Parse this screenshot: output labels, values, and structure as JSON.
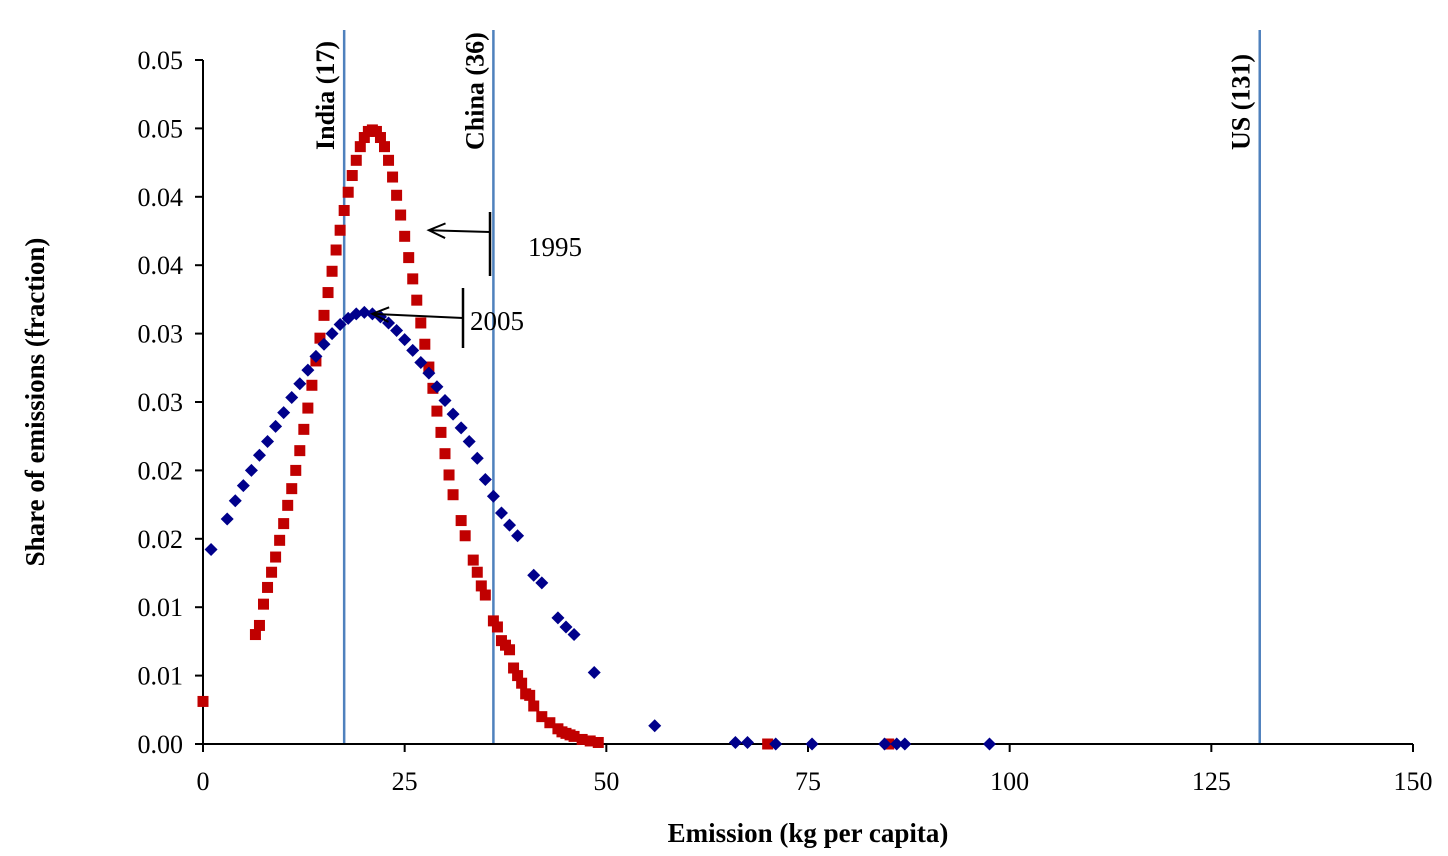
{
  "chart_data": {
    "type": "scatter",
    "title": "",
    "xlabel": "Emission (kg per capita)",
    "ylabel": "Share of emissions (fraction)",
    "xlim": [
      0,
      150
    ],
    "ylim": [
      0,
      0.045
    ],
    "x_ticks": [
      0,
      25,
      50,
      75,
      100,
      125,
      150
    ],
    "x_tick_labels": [
      "0",
      "25",
      "50",
      "75",
      "100",
      "125",
      "150"
    ],
    "y_tick_labels": [
      "0.00",
      "0.01",
      "0.01",
      "0.02",
      "0.02",
      "0.03",
      "0.03",
      "0.04",
      "0.04",
      "0.05",
      "0.05"
    ],
    "grid": false,
    "legend": "none",
    "reference_lines": [
      {
        "label": "India (17)",
        "x": 17.5
      },
      {
        "label": "China (36)",
        "x": 36
      },
      {
        "label": "US (131)",
        "x": 131
      }
    ],
    "annotations": [
      {
        "text": "1995",
        "series": "1995",
        "arrow_to": {
          "x": 28,
          "y": 0.0338
        }
      },
      {
        "text": "2005",
        "series": "2005",
        "arrow_to": {
          "x": 21,
          "y": 0.0283
        }
      }
    ],
    "series": [
      {
        "name": "1995",
        "color": "#c00000",
        "marker": "square",
        "points": [
          [
            0,
            0.0028
          ],
          [
            6.5,
            0.0072
          ],
          [
            7,
            0.0078
          ],
          [
            7.5,
            0.0092
          ],
          [
            8,
            0.0103
          ],
          [
            8.5,
            0.0113
          ],
          [
            9,
            0.0123
          ],
          [
            9.5,
            0.0134
          ],
          [
            10,
            0.0145
          ],
          [
            10.5,
            0.0157
          ],
          [
            11,
            0.0168
          ],
          [
            11.5,
            0.018
          ],
          [
            12,
            0.0193
          ],
          [
            12.5,
            0.0207
          ],
          [
            13,
            0.0221
          ],
          [
            13.5,
            0.0236
          ],
          [
            14,
            0.0252
          ],
          [
            14.5,
            0.0267
          ],
          [
            15,
            0.0282
          ],
          [
            15.5,
            0.0297
          ],
          [
            16,
            0.0311
          ],
          [
            16.5,
            0.0325
          ],
          [
            17,
            0.0338
          ],
          [
            17.5,
            0.0351
          ],
          [
            18,
            0.0363
          ],
          [
            18.5,
            0.0374
          ],
          [
            19,
            0.0384
          ],
          [
            19.5,
            0.0393
          ],
          [
            20,
            0.0399
          ],
          [
            20.5,
            0.0403
          ],
          [
            21,
            0.0404
          ],
          [
            21.5,
            0.0403
          ],
          [
            22,
            0.0399
          ],
          [
            22.5,
            0.0393
          ],
          [
            23,
            0.0384
          ],
          [
            23.5,
            0.0373
          ],
          [
            24,
            0.0361
          ],
          [
            24.5,
            0.0348
          ],
          [
            25,
            0.0334
          ],
          [
            25.5,
            0.032
          ],
          [
            26,
            0.0306
          ],
          [
            26.5,
            0.0292
          ],
          [
            27,
            0.0277
          ],
          [
            27.5,
            0.0263
          ],
          [
            28,
            0.0248
          ],
          [
            28.5,
            0.0234
          ],
          [
            29,
            0.0219
          ],
          [
            29.5,
            0.0205
          ],
          [
            30,
            0.0191
          ],
          [
            30.5,
            0.0177
          ],
          [
            31,
            0.0164
          ],
          [
            32,
            0.0147
          ],
          [
            32.5,
            0.0137
          ],
          [
            33.5,
            0.0121
          ],
          [
            34,
            0.0113
          ],
          [
            34.5,
            0.0104
          ],
          [
            35,
            0.0098
          ],
          [
            36,
            0.0081
          ],
          [
            36.5,
            0.0077
          ],
          [
            37,
            0.0068
          ],
          [
            37.5,
            0.0065
          ],
          [
            38,
            0.0062
          ],
          [
            38.5,
            0.005
          ],
          [
            39,
            0.0045
          ],
          [
            39.5,
            0.004
          ],
          [
            40,
            0.0033
          ],
          [
            40.5,
            0.0032
          ],
          [
            41,
            0.0025
          ],
          [
            42,
            0.0018
          ],
          [
            43,
            0.0014
          ],
          [
            44,
            0.001
          ],
          [
            44.5,
            0.0008
          ],
          [
            45,
            0.0007
          ],
          [
            45.5,
            0.0006
          ],
          [
            46,
            0.0005
          ],
          [
            47,
            0.0003
          ],
          [
            48,
            0.0002
          ],
          [
            49,
            0.0001
          ],
          [
            70,
            0.0
          ],
          [
            85,
            0.0
          ]
        ]
      },
      {
        "name": "2005",
        "color": "#00008b",
        "marker": "diamond",
        "points": [
          [
            1,
            0.0128
          ],
          [
            3,
            0.0148
          ],
          [
            4,
            0.016
          ],
          [
            5,
            0.017
          ],
          [
            6,
            0.018
          ],
          [
            7,
            0.019
          ],
          [
            8,
            0.0199
          ],
          [
            9,
            0.0209
          ],
          [
            10,
            0.0218
          ],
          [
            11,
            0.0228
          ],
          [
            12,
            0.0237
          ],
          [
            13,
            0.0246
          ],
          [
            14,
            0.0255
          ],
          [
            15,
            0.0263
          ],
          [
            16,
            0.027
          ],
          [
            17,
            0.0276
          ],
          [
            18,
            0.028
          ],
          [
            19,
            0.0283
          ],
          [
            20,
            0.0284
          ],
          [
            21,
            0.0283
          ],
          [
            22,
            0.0281
          ],
          [
            23,
            0.0277
          ],
          [
            24,
            0.0272
          ],
          [
            25,
            0.0266
          ],
          [
            26,
            0.0259
          ],
          [
            27,
            0.0251
          ],
          [
            28,
            0.0244
          ],
          [
            29,
            0.0235
          ],
          [
            30,
            0.0226
          ],
          [
            31,
            0.0217
          ],
          [
            32,
            0.0208
          ],
          [
            33,
            0.0199
          ],
          [
            34,
            0.0188
          ],
          [
            35,
            0.0174
          ],
          [
            36,
            0.0163
          ],
          [
            37,
            0.0152
          ],
          [
            38,
            0.0144
          ],
          [
            39,
            0.0137
          ],
          [
            41,
            0.0111
          ],
          [
            42,
            0.0106
          ],
          [
            44,
            0.0083
          ],
          [
            45,
            0.0077
          ],
          [
            46,
            0.0072
          ],
          [
            48.5,
            0.0047
          ],
          [
            56,
            0.0012
          ],
          [
            66,
            0.0001
          ],
          [
            67.5,
            0.0001
          ],
          [
            71,
            0.0
          ],
          [
            75.5,
            0.0
          ],
          [
            84.5,
            0.0
          ],
          [
            86,
            0.0
          ],
          [
            87,
            0.0
          ],
          [
            97.5,
            0.0
          ]
        ]
      }
    ]
  }
}
